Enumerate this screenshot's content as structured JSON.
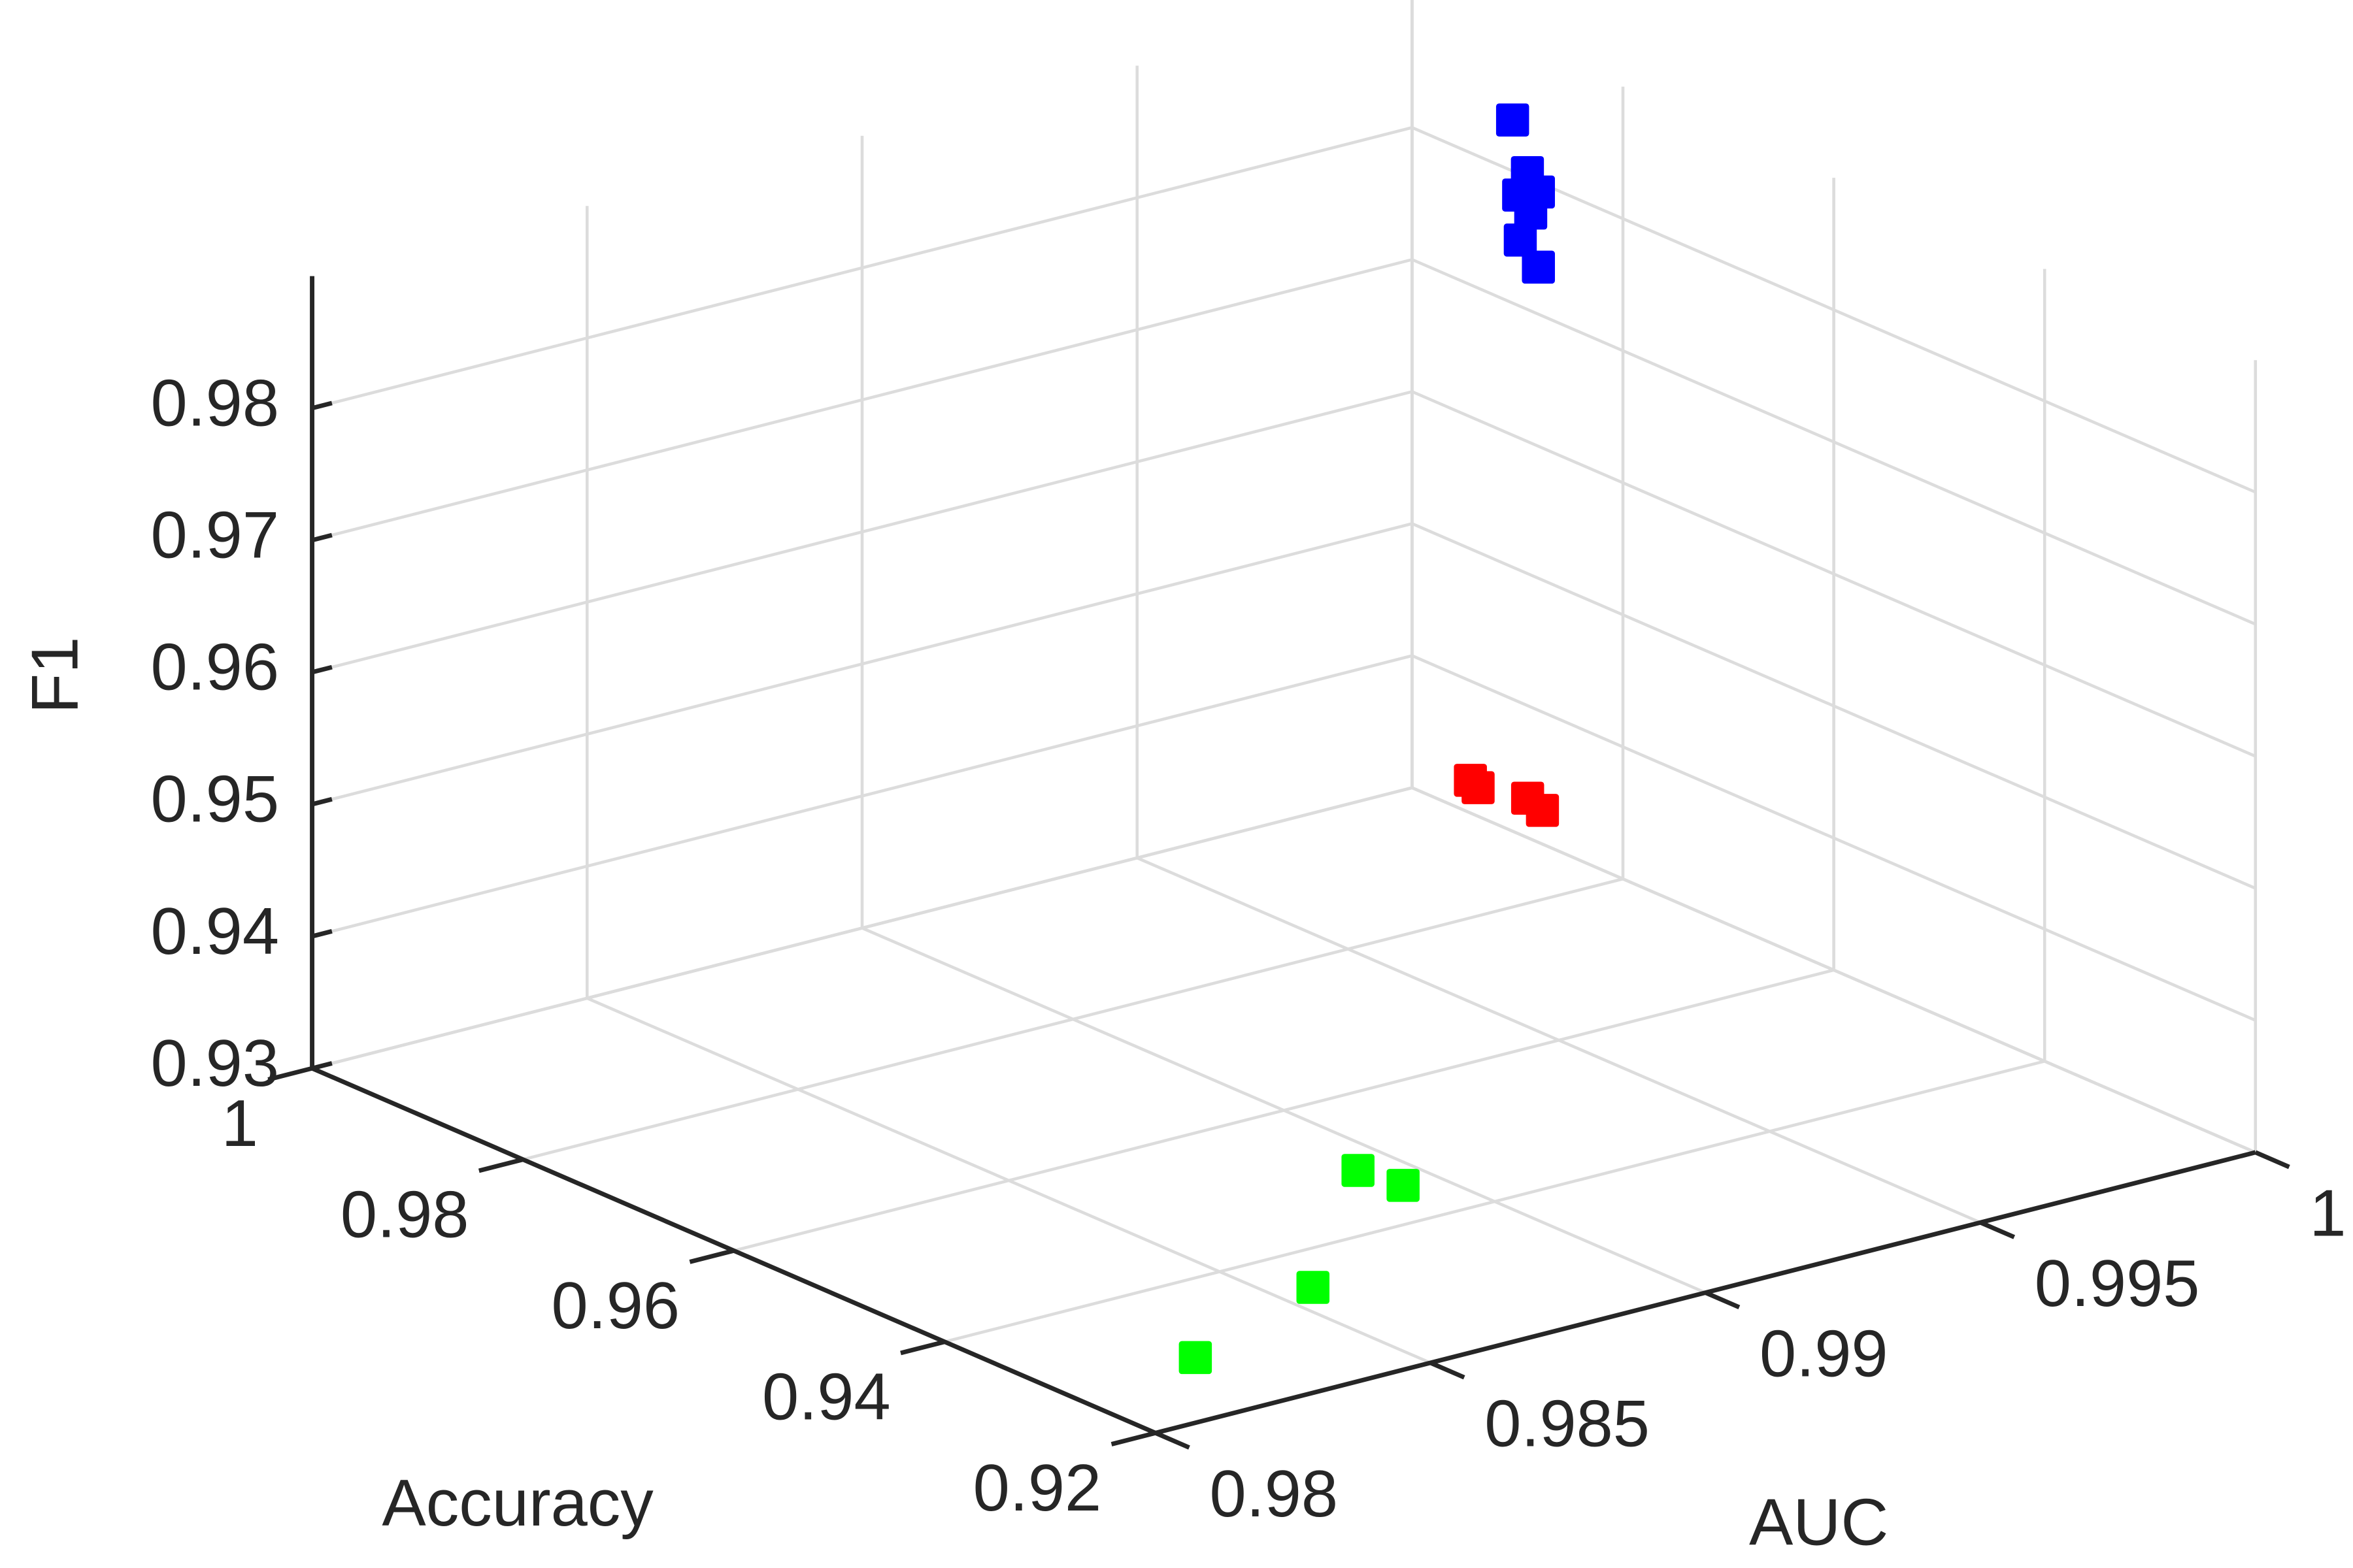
{
  "chart_data": {
    "type": "scatter3d",
    "x_label": "Accuracy",
    "y_label": "AUC",
    "z_label": "F1",
    "xlim": [
      0.92,
      1
    ],
    "ylim": [
      0.98,
      1
    ],
    "zlim": [
      0.93,
      0.99
    ],
    "xticks": [
      0.92,
      0.94,
      0.96,
      0.98,
      1
    ],
    "yticks": [
      0.98,
      0.985,
      0.99,
      0.995,
      1
    ],
    "zticks": [
      0.93,
      0.94,
      0.95,
      0.96,
      0.97,
      0.98
    ],
    "grid": true,
    "series": [
      {
        "color": "#0000ff",
        "x": [
          0.984,
          0.984,
          0.984,
          0.984,
          0.984,
          0.984,
          0.984
        ],
        "y": [
          0.99876,
          0.99903,
          0.99887,
          0.99923,
          0.99909,
          0.9989,
          0.99923
        ],
        "z": [
          0.98741,
          0.98314,
          0.98161,
          0.98146,
          0.98001,
          0.97817,
          0.97577
        ]
      },
      {
        "color": "#ff0000",
        "x": [
          0.976,
          0.976,
          0.976,
          0.976
        ],
        "y": [
          0.99646,
          0.9966,
          0.9975,
          0.99777
        ],
        "z": [
          0.94261,
          0.9419,
          0.94015,
          0.93894
        ]
      },
      {
        "color": "#00ff00",
        "x": [
          0.929,
          0.93454,
          0.9491,
          0.94545
        ],
        "y": [
          0.98245,
          0.98565,
          0.98926,
          0.98938
        ],
        "z": [
          0.93,
          0.93,
          0.93,
          0.93
        ]
      }
    ]
  }
}
